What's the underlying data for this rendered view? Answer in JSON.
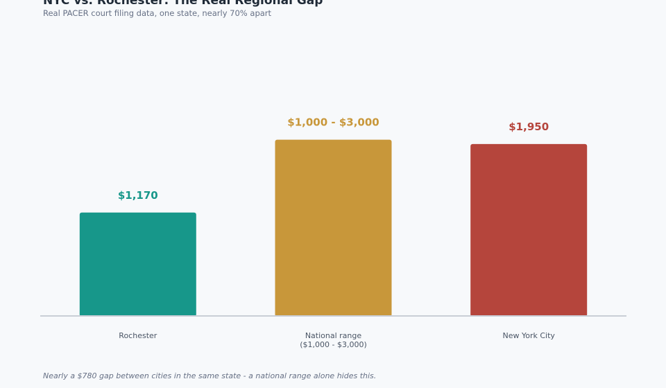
{
  "title": "NYC vs. Rochester: The Real Regional Gap",
  "subtitle": "Real PACER court filing data, one state, nearly 70% apart",
  "footnote": "Nearly a $780 gap between cities in the same state - a national range alone hides this.",
  "chart_data": {
    "type": "bar",
    "categories": [
      "Rochester",
      "National range\n($1,000 - $3,000)",
      "New York City"
    ],
    "values": [
      1170,
      2000,
      1950
    ],
    "data_labels": [
      "$1,170",
      "$1,000 - $3,000",
      "$1,950"
    ],
    "colors": [
      "#17978a",
      "#c8973a",
      "#b5453c"
    ],
    "ylim": [
      0,
      2550
    ],
    "grid": false,
    "legend": "none"
  }
}
